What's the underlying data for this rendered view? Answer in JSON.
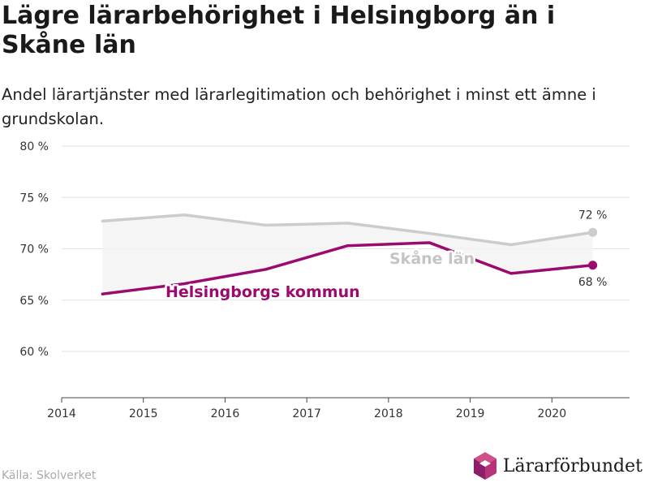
{
  "title": "Lägre lärarbehörighet i Helsingborg än i Skåne län",
  "subtitle": "Andel lärartjänster med lärarlegitimation och behörighet i minst ett ämne i grundskolan.",
  "source": "Källa: Skolverket",
  "brand": {
    "name": "Lärarförbundet",
    "icon": "hexagon-logo-icon",
    "colors": [
      "#d0508a",
      "#8c1f68",
      "#5c1448",
      "#b8347a"
    ]
  },
  "chart_data": {
    "type": "line",
    "x_ticks": [
      "2014",
      "2015",
      "2016",
      "2017",
      "2018",
      "2019",
      "2020"
    ],
    "y_ticks": [
      "60 %",
      "65 %",
      "70 %",
      "75 %",
      "80 %"
    ],
    "y_tick_values": [
      60,
      65,
      70,
      75,
      80
    ],
    "xlim": [
      2014,
      2020.95
    ],
    "ylim": [
      55.5,
      80
    ],
    "grid": true,
    "shaded_gap_between_series": true,
    "series": [
      {
        "name": "Skåne län",
        "color": "#cccccc",
        "x": [
          2014.5,
          2015.5,
          2016.5,
          2017.5,
          2018.5,
          2019.5,
          2020.5
        ],
        "y": [
          72.7,
          73.3,
          72.3,
          72.5,
          71.5,
          70.4,
          71.6
        ],
        "end_label": "72 %"
      },
      {
        "name": "Helsingborgs kommun",
        "color": "#9b0a6e",
        "x": [
          2014.5,
          2015.5,
          2016.5,
          2017.5,
          2018.5,
          2019.5,
          2020.5
        ],
        "y": [
          65.6,
          66.6,
          68.0,
          70.3,
          70.6,
          67.6,
          68.4
        ],
        "end_label": "68 %"
      }
    ]
  }
}
